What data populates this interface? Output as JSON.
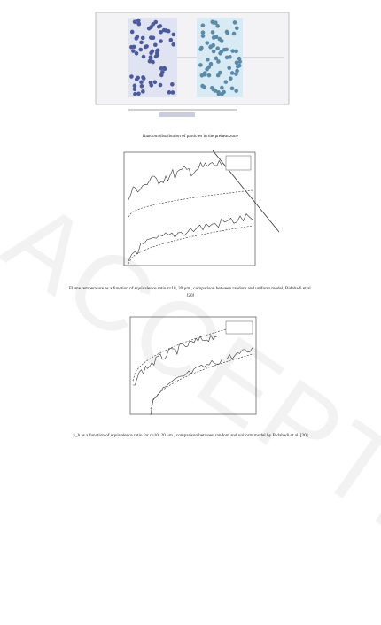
{
  "figures": [
    {
      "caption": "Random distribution of particles in the preheat zone"
    },
    {
      "caption": "Flame temperature as a function of equivalence ratio r=10, 20 μm , comparison between random and uniform model, Bidabadi et al. [20]"
    },
    {
      "caption": "y_b as a function of equivalence ratio for r=10, 20 μm , comparison between random and uniform model by Bidabadi et al. [20]"
    }
  ],
  "watermark": "ACCEPTED"
}
